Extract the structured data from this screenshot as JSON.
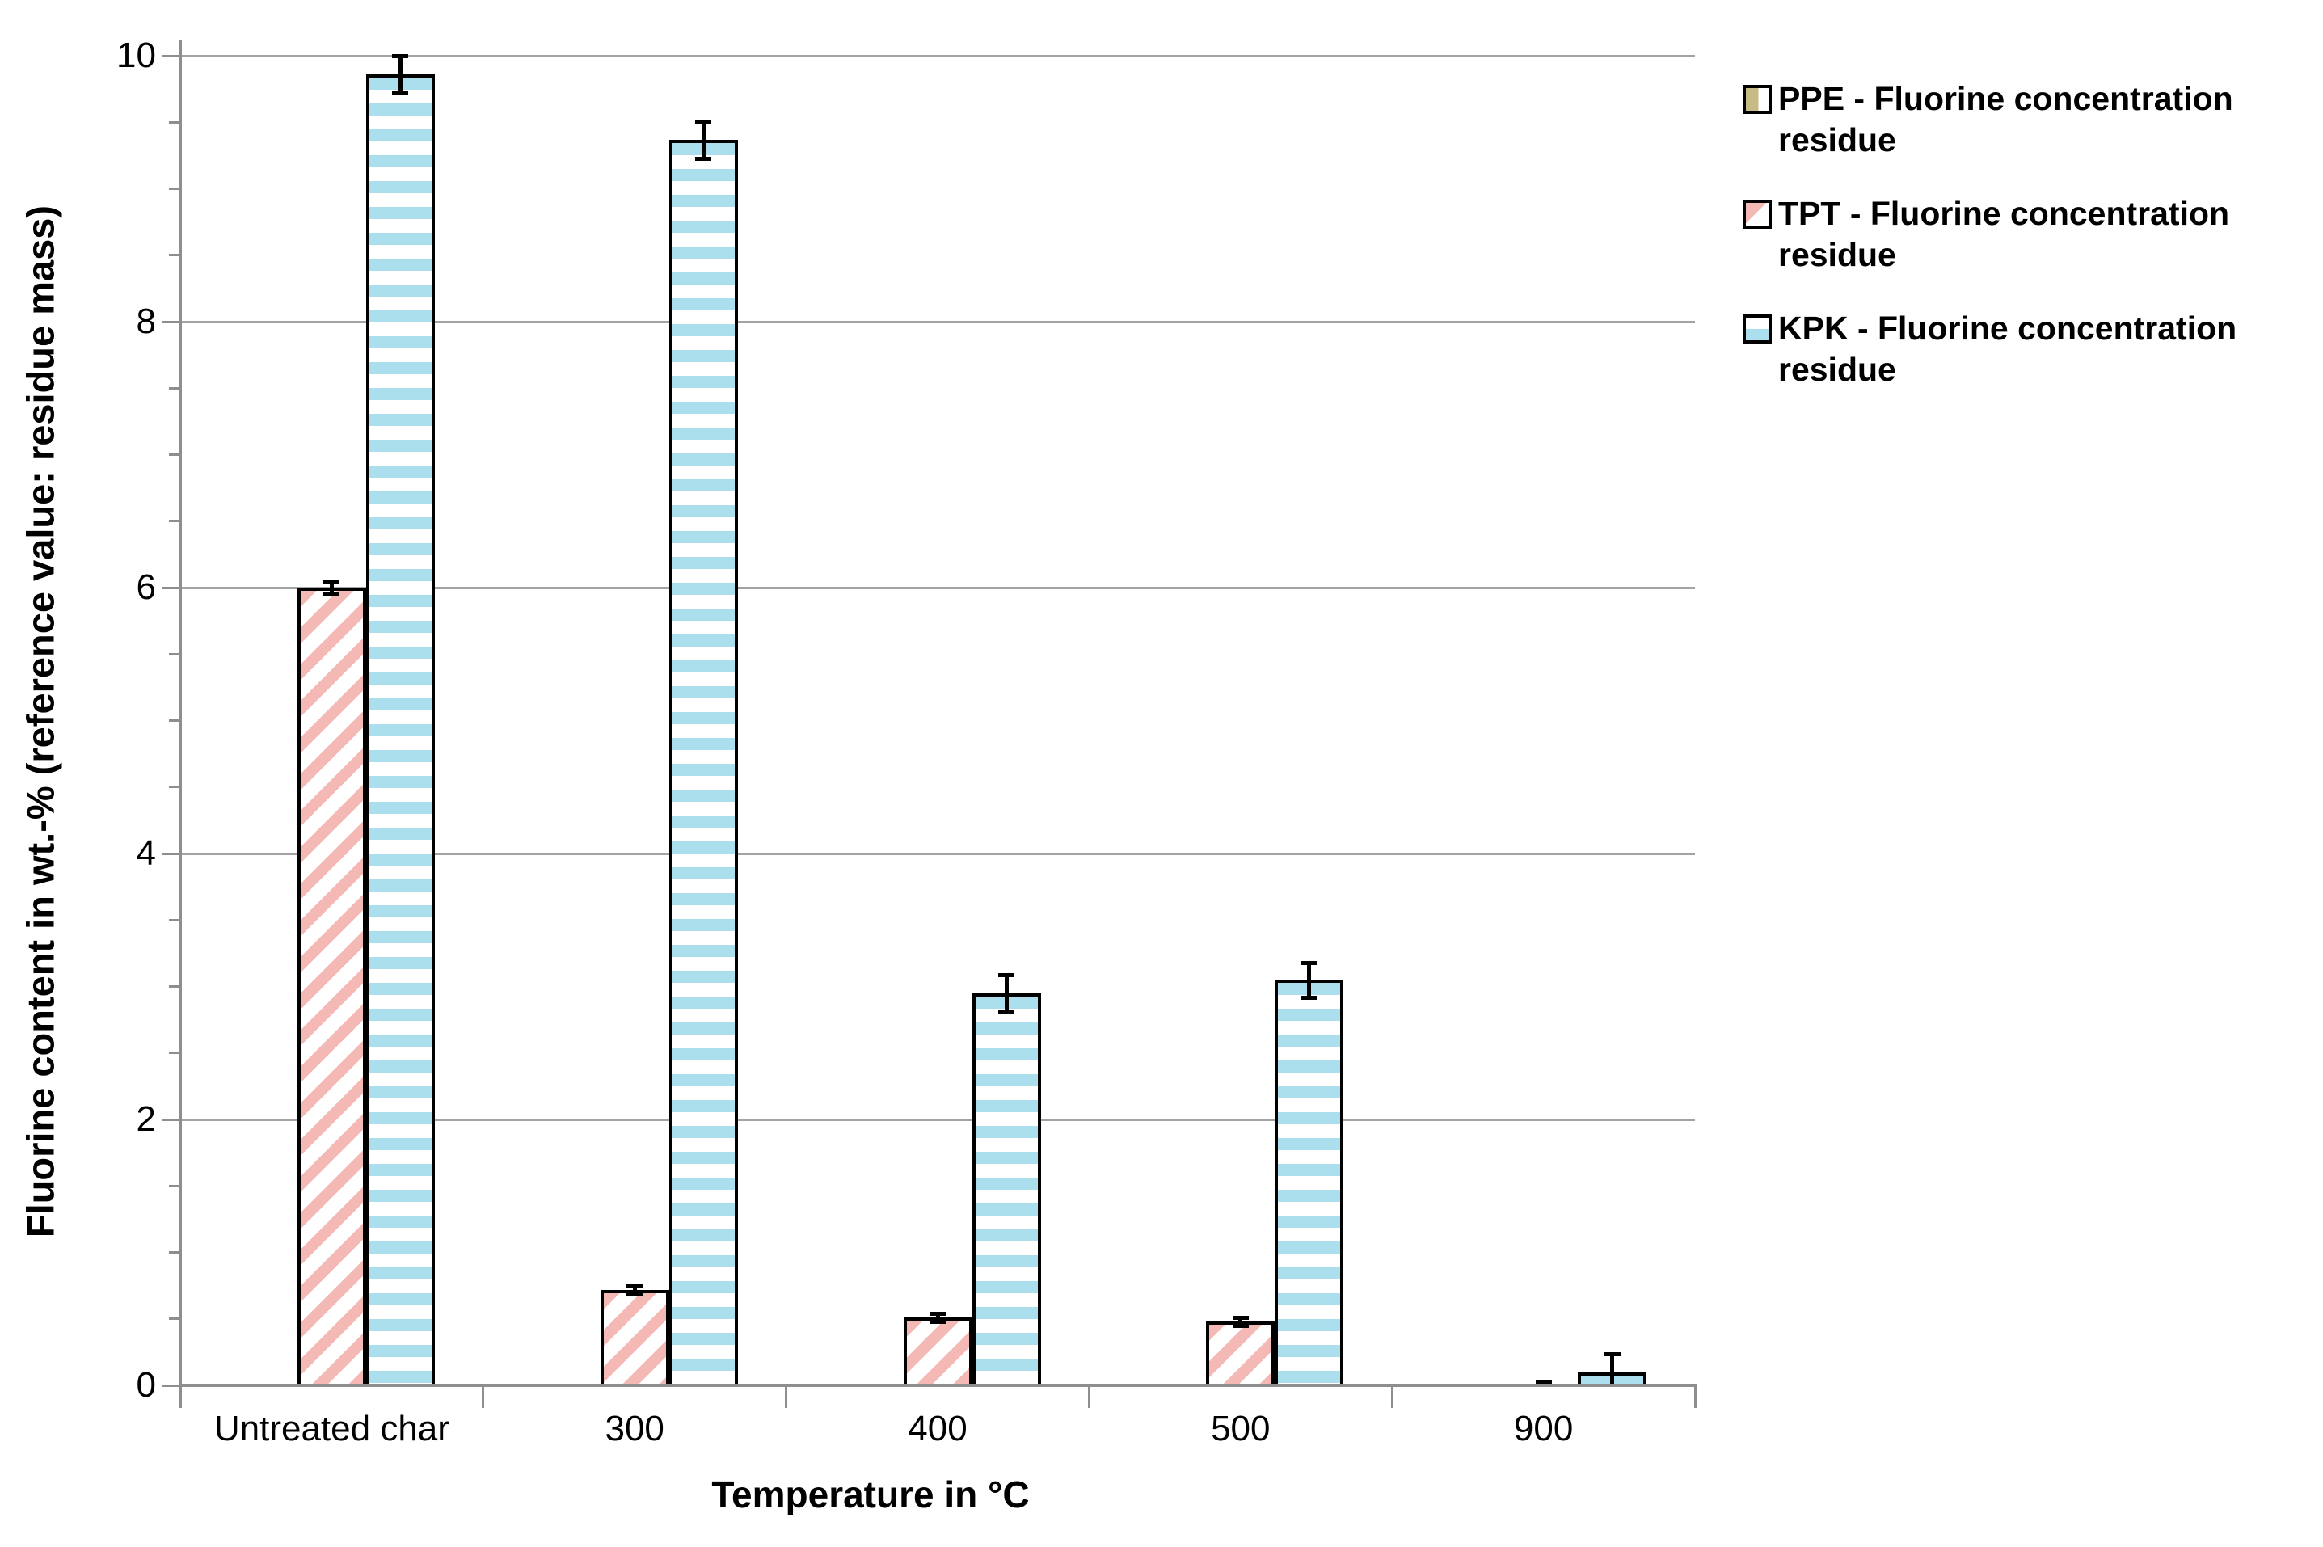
{
  "chart_data": {
    "type": "bar",
    "title": "",
    "categories": [
      "Untreated char",
      "300",
      "400",
      "500",
      "900"
    ],
    "series": [
      {
        "name": "PPE - Fluorine concentration residue",
        "values": [
          0,
          0,
          0,
          0,
          0
        ],
        "errors": [
          0,
          0,
          0,
          0,
          0
        ],
        "pattern": "vertical-stripes",
        "color": "#c6ba85"
      },
      {
        "name": "TPT - Fluorine concentration residue",
        "values": [
          6.0,
          0.72,
          0.51,
          0.48,
          0.01
        ],
        "errors": [
          0.04,
          0.03,
          0.03,
          0.03,
          0.02
        ],
        "pattern": "upward-diagonal-stripes",
        "color": "#f4b9b4"
      },
      {
        "name": "KPK - Fluorine concentration residue",
        "values": [
          9.86,
          9.37,
          2.95,
          3.05,
          0.1
        ],
        "errors": [
          0.14,
          0.14,
          0.14,
          0.13,
          0.14
        ],
        "pattern": "horizontal-stripes",
        "color": "#abdfee"
      }
    ],
    "xlabel": "Temperature in °C",
    "ylabel": "Fluorine content in wt.-% (reference value: residue mass)",
    "ylim": [
      0,
      10
    ],
    "y_major_ticks": [
      0,
      2,
      4,
      6,
      8,
      10
    ],
    "y_minor_tick_step": 0.5,
    "grid": "horizontal-major-only",
    "legend_position": "top-right",
    "error_bars": true
  },
  "colors": {
    "background": "#ffffff",
    "axis": "#8e8e8e",
    "gridline": "#a3a3a3",
    "bar_outline": "#000000",
    "ppe_fill": "#c6ba85",
    "tpt_fill": "#f4b9b4",
    "kpk_fill": "#abdfee",
    "text": "#000000"
  }
}
